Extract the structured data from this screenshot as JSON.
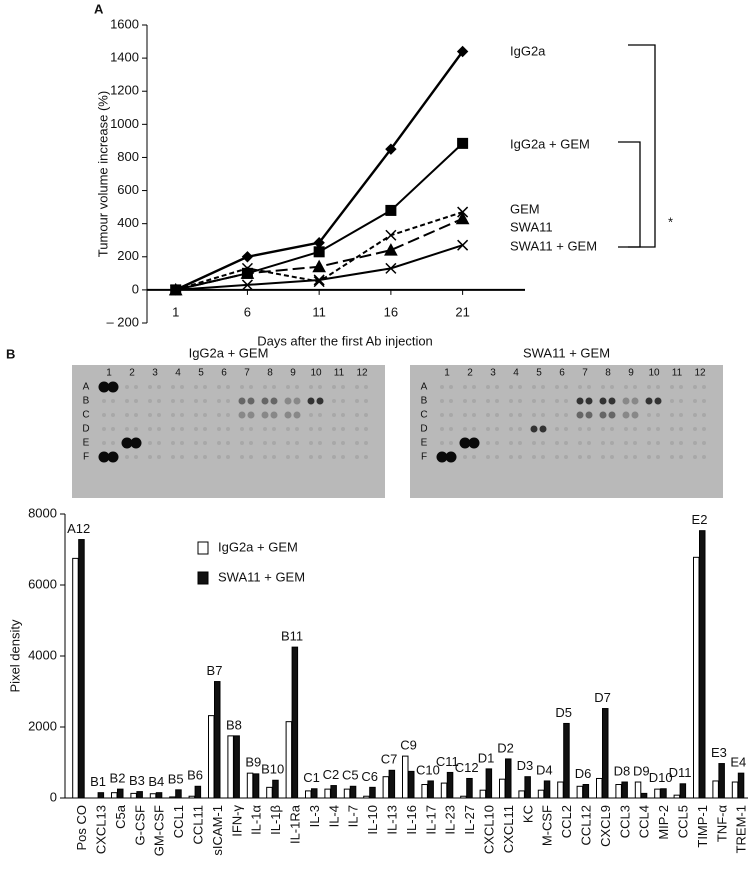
{
  "chart_data": [
    {
      "type": "line",
      "panel_label": "A",
      "x": [
        1,
        6,
        11,
        16,
        21
      ],
      "xlim": [
        -1,
        25
      ],
      "xticks": [
        1,
        6,
        11,
        16,
        21
      ],
      "ylim": [
        -200,
        1600
      ],
      "yticks": [
        {
          "value": -200,
          "label": "– 200"
        },
        0,
        200,
        400,
        600,
        800,
        1000,
        1200,
        1400,
        1600
      ],
      "xlabel": "Days after the first Ab injection",
      "ylabel": "Tumour volume increase (%)",
      "annotation": "*",
      "series": [
        {
          "name": "IgG2a",
          "color": "#000000",
          "marker": "diamond",
          "line_style": "solid",
          "values": [
            0,
            200,
            285,
            850,
            1440
          ]
        },
        {
          "name": "IgG2a + GEM",
          "color": "#000000",
          "marker": "square",
          "line_style": "solid",
          "values": [
            0,
            100,
            230,
            480,
            885
          ]
        },
        {
          "name": "GEM",
          "color": "#000000",
          "marker": "x",
          "line_style": "dotted",
          "values": [
            0,
            130,
            50,
            330,
            470
          ]
        },
        {
          "name": "SWA11",
          "color": "#000000",
          "marker": "triangle",
          "line_style": "dashed",
          "values": [
            0,
            100,
            140,
            240,
            430
          ]
        },
        {
          "name": "SWA11 + GEM",
          "color": "#000000",
          "marker": "x",
          "line_style": "solid",
          "values": [
            0,
            30,
            60,
            130,
            270
          ]
        }
      ]
    },
    {
      "type": "bar",
      "panel_label": "B",
      "blots": [
        {
          "title": "IgG2a + GEM",
          "rows": [
            "A",
            "B",
            "C",
            "D",
            "E",
            "F"
          ],
          "columns": [
            "1",
            "2",
            "3",
            "4",
            "5",
            "6",
            "7",
            "8",
            "9",
            "10",
            "11",
            "12"
          ]
        },
        {
          "title": "SWA11 + GEM",
          "rows": [
            "A",
            "B",
            "C",
            "D",
            "E",
            "F"
          ],
          "columns": [
            "1",
            "2",
            "3",
            "4",
            "5",
            "6",
            "7",
            "8",
            "9",
            "10",
            "11",
            "12"
          ]
        }
      ],
      "categories": [
        "Pos CO",
        "CXCL13",
        "C5a",
        "G-CSF",
        "GM-CSF",
        "CCL1",
        "CCL11",
        "sICAM-1",
        "IFN-γ",
        "IL-1α",
        "IL-1β",
        "IL-1Ra",
        "IL-3",
        "IL-4",
        "IL-7",
        "IL-10",
        "IL-13",
        "IL-16",
        "IL-17",
        "IL-23",
        "IL-27",
        "CXCL10",
        "CXCL11",
        "KC",
        "M-CSF",
        "CCL2",
        "CCL12",
        "CXCL9",
        "CCL3",
        "CCL4",
        "MIP-2",
        "CCL5",
        "TIMP-1",
        "TNF-α",
        "TREM-1"
      ],
      "bar_labels": [
        "A12",
        "B1",
        "B2",
        "B3",
        "B4",
        "B5",
        "B6",
        "B7",
        "B8",
        "B9",
        "B10",
        "B11",
        "C1",
        "C2",
        "C5",
        "C6",
        "C7",
        "C9",
        "C10",
        "C11",
        "C12",
        "D1",
        "D2",
        "D3",
        "D4",
        "D5",
        "D6",
        "D7",
        "D8",
        "D9",
        "D10",
        "D11",
        "E2",
        "E3",
        "E4"
      ],
      "ylim": [
        0,
        8000
      ],
      "yticks": [
        0,
        2000,
        4000,
        6000,
        8000
      ],
      "ylabel": "Pixel density",
      "legend": "upper left",
      "series": [
        {
          "name": "IgG2a + GEM",
          "color": "#ffffff",
          "values": [
            6750,
            0,
            150,
            130,
            120,
            30,
            50,
            2320,
            1750,
            700,
            300,
            2150,
            200,
            250,
            250,
            50,
            600,
            1180,
            380,
            420,
            50,
            220,
            530,
            200,
            220,
            450,
            330,
            550,
            380,
            450,
            250,
            80,
            6780,
            480,
            450
          ]
        },
        {
          "name": "SWA11 + GEM",
          "color": "#111111",
          "values": [
            7280,
            150,
            250,
            180,
            150,
            230,
            330,
            3280,
            1750,
            680,
            500,
            4250,
            260,
            350,
            330,
            300,
            780,
            750,
            480,
            720,
            550,
            820,
            1100,
            600,
            480,
            2100,
            380,
            2520,
            450,
            130,
            260,
            400,
            7530,
            970,
            700
          ]
        }
      ]
    }
  ]
}
